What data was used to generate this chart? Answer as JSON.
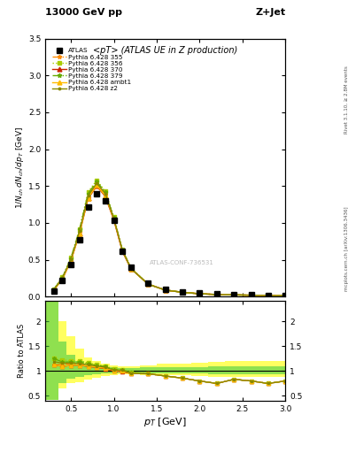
{
  "title_top": "13000 GeV pp",
  "title_right": "Z+Jet",
  "plot_title": "<pT> (ATLAS UE in Z production)",
  "ylabel_main": "1/N_{ch} dN_{ch}/dp_{T} [GeV]",
  "ylabel_ratio": "Ratio to ATLAS",
  "right_label_top": "Rivet 3.1.10, ≥ 2.8M events",
  "right_label_bottom": "mcplots.cern.ch [arXiv:1306.3436]",
  "watermark": "ATLAS-CONF-736531",
  "atlas_x": [
    0.3,
    0.4,
    0.5,
    0.6,
    0.7,
    0.8,
    0.9,
    1.0,
    1.1,
    1.2,
    1.4,
    1.6,
    1.8,
    2.0,
    2.2,
    2.4,
    2.6,
    2.8,
    3.0
  ],
  "atlas_y": [
    0.08,
    0.22,
    0.44,
    0.77,
    1.22,
    1.4,
    1.3,
    1.04,
    0.62,
    0.4,
    0.18,
    0.1,
    0.07,
    0.05,
    0.04,
    0.03,
    0.025,
    0.02,
    0.015
  ],
  "mc_x": [
    0.3,
    0.4,
    0.5,
    0.6,
    0.7,
    0.8,
    0.9,
    1.0,
    1.1,
    1.2,
    1.4,
    1.6,
    1.8,
    2.0,
    2.2,
    2.4,
    2.6,
    2.8,
    3.0
  ],
  "p355_y": [
    0.09,
    0.25,
    0.5,
    0.88,
    1.35,
    1.52,
    1.38,
    1.05,
    0.62,
    0.38,
    0.17,
    0.09,
    0.06,
    0.04,
    0.03,
    0.025,
    0.02,
    0.015,
    0.012
  ],
  "p355_color": "#ff8c00",
  "p355_style": "-.",
  "p355_marker": "*",
  "p355_label": "Pythia 6.428 355",
  "p356_y": [
    0.1,
    0.27,
    0.53,
    0.92,
    1.42,
    1.58,
    1.43,
    1.08,
    0.64,
    0.39,
    0.17,
    0.09,
    0.06,
    0.04,
    0.03,
    0.025,
    0.02,
    0.015,
    0.012
  ],
  "p356_color": "#aacc00",
  "p356_style": ":",
  "p356_marker": "s",
  "p356_label": "Pythia 6.428 356",
  "p370_y": [
    0.09,
    0.24,
    0.49,
    0.86,
    1.33,
    1.5,
    1.36,
    1.04,
    0.61,
    0.38,
    0.17,
    0.09,
    0.06,
    0.04,
    0.03,
    0.025,
    0.02,
    0.015,
    0.012
  ],
  "p370_color": "#cc2200",
  "p370_style": "-",
  "p370_marker": "^",
  "p370_label": "Pythia 6.428 370",
  "p379_y": [
    0.1,
    0.26,
    0.52,
    0.91,
    1.4,
    1.56,
    1.42,
    1.07,
    0.63,
    0.39,
    0.17,
    0.09,
    0.06,
    0.04,
    0.03,
    0.025,
    0.02,
    0.015,
    0.012
  ],
  "p379_color": "#66aa00",
  "p379_style": "-.",
  "p379_marker": "*",
  "p379_label": "Pythia 6.428 379",
  "pambt1_y": [
    0.09,
    0.24,
    0.49,
    0.86,
    1.34,
    1.51,
    1.37,
    1.05,
    0.62,
    0.38,
    0.17,
    0.09,
    0.06,
    0.04,
    0.03,
    0.025,
    0.02,
    0.015,
    0.012
  ],
  "pambt1_color": "#ffbb00",
  "pambt1_style": "-",
  "pambt1_marker": "^",
  "pambt1_label": "Pythia 6.428 ambt1",
  "pz2_y": [
    0.095,
    0.255,
    0.51,
    0.89,
    1.37,
    1.54,
    1.4,
    1.06,
    0.63,
    0.38,
    0.17,
    0.09,
    0.06,
    0.04,
    0.03,
    0.025,
    0.02,
    0.015,
    0.012
  ],
  "pz2_color": "#888800",
  "pz2_style": "-",
  "pz2_marker": ".",
  "pz2_label": "Pythia 6.428 z2",
  "xlim": [
    0.2,
    3.0
  ],
  "ylim_main": [
    0.0,
    3.5
  ],
  "ylim_ratio": [
    0.4,
    2.4
  ],
  "band_x_edges": [
    0.2,
    0.35,
    0.45,
    0.55,
    0.65,
    0.75,
    0.85,
    0.95,
    1.05,
    1.15,
    1.3,
    1.5,
    1.7,
    1.9,
    2.1,
    2.3,
    2.5,
    2.7,
    2.9,
    3.1
  ],
  "band_yellow_lo": [
    0.42,
    0.65,
    0.75,
    0.78,
    0.83,
    0.87,
    0.9,
    0.92,
    0.93,
    0.93,
    0.92,
    0.92,
    0.92,
    0.9,
    0.88,
    0.88,
    0.88,
    0.88,
    0.88
  ],
  "band_yellow_hi": [
    2.4,
    2.0,
    1.7,
    1.45,
    1.28,
    1.2,
    1.15,
    1.12,
    1.1,
    1.1,
    1.12,
    1.14,
    1.14,
    1.16,
    1.18,
    1.2,
    1.2,
    1.2,
    1.2
  ],
  "band_green_lo": [
    0.42,
    0.75,
    0.85,
    0.88,
    0.91,
    0.93,
    0.95,
    0.96,
    0.97,
    0.97,
    0.96,
    0.96,
    0.96,
    0.95,
    0.94,
    0.94,
    0.94,
    0.94,
    0.94
  ],
  "band_green_hi": [
    2.4,
    1.6,
    1.32,
    1.2,
    1.13,
    1.1,
    1.08,
    1.07,
    1.06,
    1.06,
    1.07,
    1.08,
    1.08,
    1.08,
    1.09,
    1.09,
    1.09,
    1.09,
    1.09
  ],
  "bg_color": "#ffffff"
}
